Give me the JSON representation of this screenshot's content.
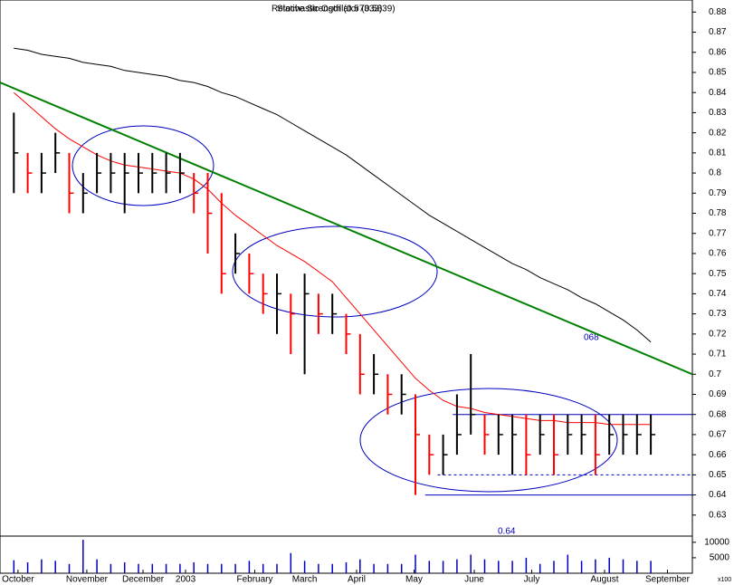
{
  "chart_data": {
    "type": "ohlc",
    "title": "Relative Strength (0.57333)",
    "subtitle": "Stochastic Oscillator (0.5839)",
    "xlim": [
      -1,
      49
    ],
    "xticks": [
      {
        "value": 0.3,
        "label": "October"
      },
      {
        "value": 5.27,
        "label": "November"
      },
      {
        "value": 9.33,
        "label": "December"
      },
      {
        "value": 12.4,
        "label": "2003"
      },
      {
        "value": 17.4,
        "label": "February"
      },
      {
        "value": 21,
        "label": "March"
      },
      {
        "value": 24.75,
        "label": "April"
      },
      {
        "value": 28.9,
        "label": "May"
      },
      {
        "value": 33.25,
        "label": "June"
      },
      {
        "value": 37.4,
        "label": "July"
      },
      {
        "value": 42.66,
        "label": "August"
      },
      {
        "value": 47.2,
        "label": "September"
      }
    ],
    "ylim": [
      0.62,
      0.886
    ],
    "yticks": [
      0.63,
      0.64,
      0.65,
      0.66,
      0.67,
      0.68,
      0.69,
      0.7,
      0.71,
      0.72,
      0.73,
      0.74,
      0.75,
      0.76,
      0.77,
      0.78,
      0.79,
      0.8,
      0.81,
      0.82,
      0.83,
      0.84,
      0.85,
      0.86,
      0.87,
      0.88
    ],
    "bars": {
      "high": [
        0.83,
        0.81,
        0.81,
        0.82,
        0.81,
        0.8,
        0.81,
        0.81,
        0.81,
        0.81,
        0.81,
        0.81,
        0.81,
        0.8,
        0.8,
        0.79,
        0.77,
        0.76,
        0.75,
        0.75,
        0.74,
        0.75,
        0.74,
        0.74,
        0.73,
        0.72,
        0.71,
        0.7,
        0.7,
        0.69,
        0.67,
        0.67,
        0.69,
        0.71,
        0.68,
        0.68,
        0.68,
        0.68,
        0.68,
        0.68,
        0.68,
        0.68,
        0.68,
        0.68,
        0.68,
        0.68,
        0.68
      ],
      "low": [
        0.79,
        0.79,
        0.79,
        0.8,
        0.78,
        0.78,
        0.79,
        0.79,
        0.78,
        0.79,
        0.79,
        0.79,
        0.79,
        0.78,
        0.76,
        0.74,
        0.75,
        0.74,
        0.73,
        0.72,
        0.71,
        0.7,
        0.72,
        0.72,
        0.71,
        0.69,
        0.69,
        0.68,
        0.68,
        0.64,
        0.65,
        0.65,
        0.66,
        0.67,
        0.66,
        0.66,
        0.65,
        0.65,
        0.66,
        0.65,
        0.66,
        0.66,
        0.65,
        0.66,
        0.66,
        0.66,
        0.66
      ],
      "close": [
        0.81,
        0.8,
        0.8,
        0.81,
        0.79,
        0.79,
        0.8,
        0.8,
        0.8,
        0.8,
        0.8,
        0.8,
        0.8,
        0.79,
        0.78,
        0.75,
        0.76,
        0.75,
        0.74,
        0.74,
        0.73,
        0.74,
        0.73,
        0.73,
        0.72,
        0.7,
        0.7,
        0.69,
        0.69,
        0.67,
        0.66,
        0.66,
        0.67,
        0.68,
        0.67,
        0.67,
        0.67,
        0.66,
        0.67,
        0.66,
        0.67,
        0.67,
        0.66,
        0.67,
        0.67,
        0.67,
        0.67
      ],
      "up_color": "#000000",
      "down_color": "#ff0000"
    },
    "series": [
      {
        "color": "#000000",
        "values": [
          0.862,
          0.861,
          0.859,
          0.858,
          0.857,
          0.855,
          0.854,
          0.853,
          0.851,
          0.85,
          0.849,
          0.848,
          0.846,
          0.845,
          0.843,
          0.84,
          0.838,
          0.835,
          0.832,
          0.829,
          0.825,
          0.821,
          0.817,
          0.813,
          0.809,
          0.804,
          0.799,
          0.794,
          0.789,
          0.784,
          0.779,
          0.775,
          0.771,
          0.767,
          0.763,
          0.759,
          0.755,
          0.752,
          0.748,
          0.745,
          0.742,
          0.738,
          0.735,
          0.731,
          0.727,
          0.722,
          0.716
        ]
      },
      {
        "color": "#ff0000",
        "values": [
          0.84,
          0.834,
          0.828,
          0.822,
          0.817,
          0.813,
          0.809,
          0.806,
          0.804,
          0.803,
          0.802,
          0.801,
          0.8,
          0.797,
          0.792,
          0.785,
          0.779,
          0.774,
          0.769,
          0.764,
          0.76,
          0.756,
          0.751,
          0.746,
          0.738,
          0.73,
          0.722,
          0.714,
          0.706,
          0.698,
          0.692,
          0.687,
          0.684,
          0.683,
          0.681,
          0.68,
          0.679,
          0.678,
          0.677,
          0.677,
          0.676,
          0.676,
          0.676,
          0.675,
          0.675,
          0.675,
          0.675
        ]
      }
    ],
    "trend_line": {
      "x": [
        -1,
        49
      ],
      "values": [
        0.845,
        0.7
      ],
      "color": "#008000"
    },
    "levels": [
      {
        "value": 0.68,
        "x": [
          31.7,
          49
        ]
      },
      {
        "value": 0.65,
        "x": [
          30.6,
          49
        ],
        "dashed": true
      },
      {
        "value": 0.64,
        "x": [
          29.7,
          49
        ]
      }
    ],
    "annotations": [
      "068",
      "0.64"
    ],
    "volume": {
      "values": [
        4200,
        3500,
        4500,
        4000,
        3000,
        10800,
        4500,
        3000,
        3500,
        3000,
        3000,
        3000,
        3000,
        3500,
        3000,
        3000,
        3000,
        4000,
        3000,
        3000,
        6500,
        4000,
        3000,
        3000,
        3500,
        4500,
        3000,
        3000,
        3000,
        6000,
        4000,
        4000,
        4500,
        6000,
        4500,
        4000,
        4000,
        5000,
        3000,
        4000,
        6000,
        4000,
        4500,
        5000,
        4500,
        4000,
        4000
      ],
      "color": "#0000c0",
      "ylim": [
        0,
        12000
      ],
      "yticks": [
        5000,
        10000
      ],
      "unit_label": "x100"
    }
  }
}
